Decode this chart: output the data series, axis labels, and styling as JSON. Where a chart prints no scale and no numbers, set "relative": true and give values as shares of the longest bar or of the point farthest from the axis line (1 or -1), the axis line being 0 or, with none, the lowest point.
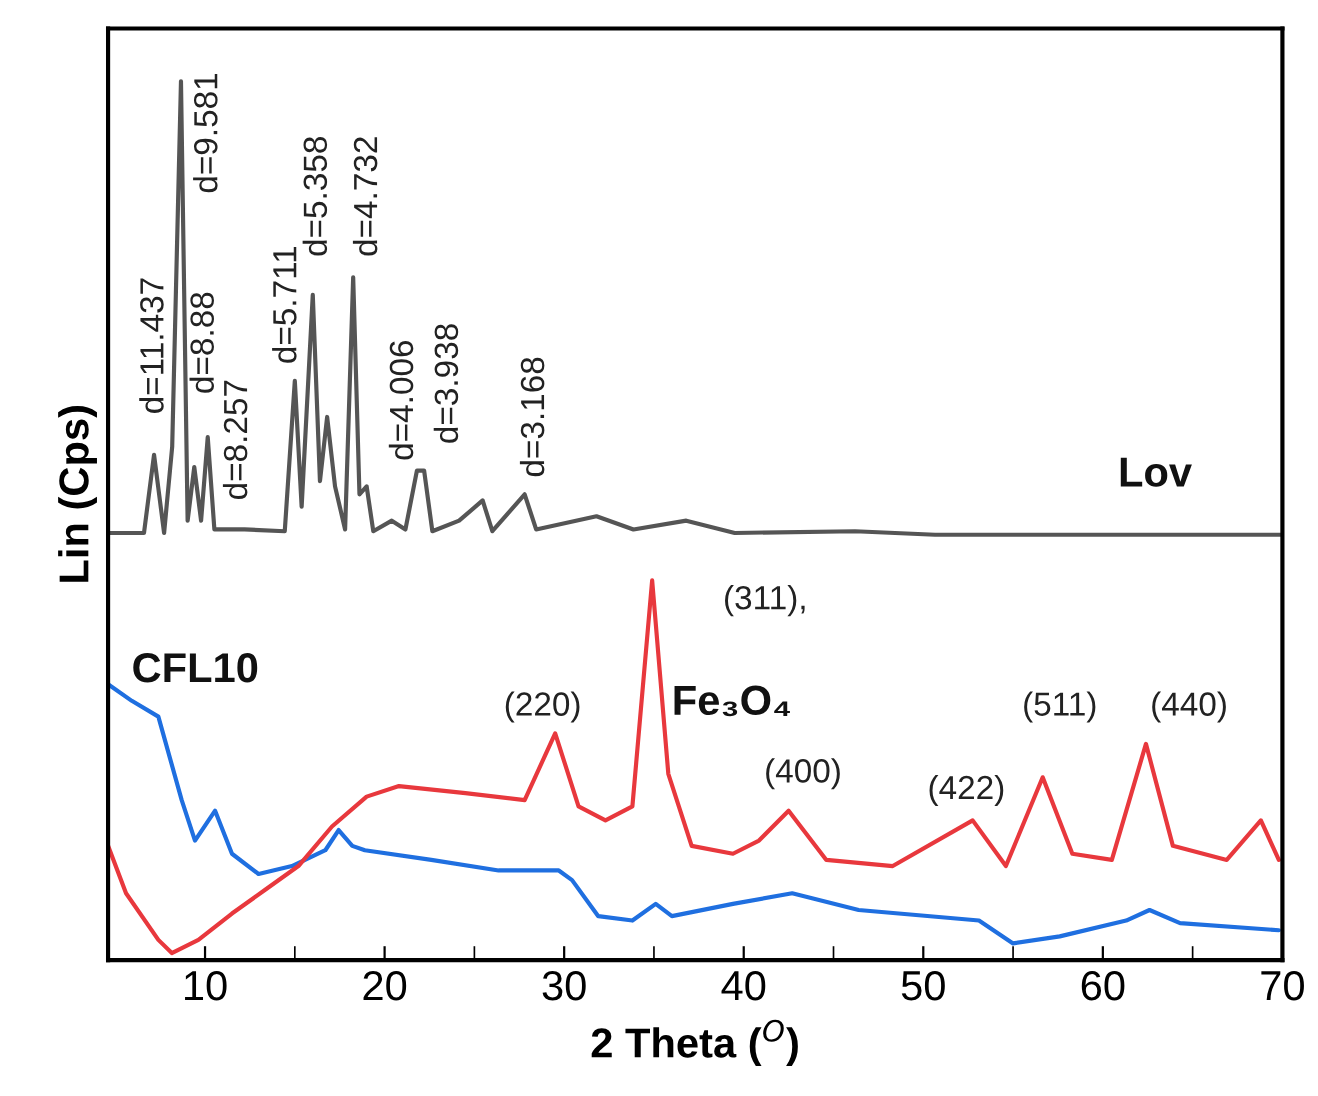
{
  "chart_data": {
    "type": "line",
    "relative": true,
    "xlabel": "2 Theta ($^{O}$)",
    "ylabel": "Lin (Cps)",
    "xlim": [
      4.6,
      70
    ],
    "xticks": [
      10,
      20,
      30,
      40,
      50,
      60,
      70
    ],
    "series": [
      {
        "name": "Lov",
        "color": "#555555",
        "x": [
          4.6,
          6.6,
          7.16,
          7.72,
          8.17,
          8.66,
          9.03,
          9.4,
          9.78,
          10.15,
          10.52,
          12.2,
          14.44,
          15.0,
          15.38,
          16.0,
          16.4,
          16.8,
          17.24,
          17.8,
          18.25,
          18.6,
          19.0,
          19.37,
          20.4,
          21.16,
          21.8,
          22.2,
          22.66,
          24.15,
          25.46,
          26.0,
          27.8,
          28.44,
          31.8,
          33.86,
          36.8,
          39.5,
          46.2,
          50.65,
          70
        ],
        "values": [
          0.486,
          0.486,
          0.575,
          0.486,
          0.584,
          1.0,
          0.5,
          0.561,
          0.5,
          0.595,
          0.49,
          0.49,
          0.488,
          0.659,
          0.516,
          0.757,
          0.545,
          0.618,
          0.539,
          0.49,
          0.777,
          0.53,
          0.539,
          0.488,
          0.5,
          0.49,
          0.557,
          0.557,
          0.488,
          0.5,
          0.523,
          0.488,
          0.53,
          0.49,
          0.505,
          0.49,
          0.5,
          0.486,
          0.488,
          0.484,
          0.484
        ]
      },
      {
        "name": "CFL10",
        "color": "#1f6fe0",
        "x": [
          4.6,
          5.92,
          7.4,
          7.77,
          8.7,
          9.44,
          10.56,
          11.5,
          12.98,
          14.84,
          16.7,
          17.44,
          18.2,
          18.9,
          22.6,
          26.35,
          29.7,
          30.44,
          31.9,
          33.8,
          35.1,
          36.0,
          39.4,
          42.7,
          46.4,
          53.1,
          55.0,
          57.6,
          61.3,
          62.6,
          64.3,
          69.8
        ],
        "values": [
          0.314,
          0.295,
          0.277,
          0.25,
          0.182,
          0.136,
          0.17,
          0.121,
          0.098,
          0.107,
          0.125,
          0.148,
          0.13,
          0.125,
          0.114,
          0.102,
          0.102,
          0.091,
          0.05,
          0.045,
          0.064,
          0.05,
          0.064,
          0.076,
          0.057,
          0.045,
          0.019,
          0.027,
          0.045,
          0.057,
          0.042,
          0.034
        ]
      },
      {
        "name": "Fe₃O₄",
        "color": "#e8383d",
        "x": [
          4.6,
          5.6,
          7.4,
          8.15,
          9.63,
          11.5,
          13.35,
          15.2,
          17.07,
          19.0,
          20.8,
          24.5,
          27.8,
          29.5,
          30.8,
          32.3,
          33.8,
          34.9,
          35.8,
          37.1,
          39.4,
          40.85,
          42.5,
          44.6,
          48.3,
          52.75,
          54.6,
          56.65,
          58.3,
          60.5,
          62.4,
          63.9,
          66.9,
          68.8,
          69.8
        ],
        "values": [
          0.13,
          0.076,
          0.023,
          0.008,
          0.023,
          0.053,
          0.08,
          0.107,
          0.152,
          0.186,
          0.198,
          0.19,
          0.182,
          0.258,
          0.175,
          0.159,
          0.175,
          0.432,
          0.212,
          0.13,
          0.121,
          0.136,
          0.17,
          0.114,
          0.107,
          0.159,
          0.107,
          0.208,
          0.121,
          0.114,
          0.246,
          0.13,
          0.114,
          0.159,
          0.114
        ]
      }
    ],
    "annotations": [
      "d=11.437",
      "d=9.581",
      "d=8.88",
      "d=8.257",
      "d=5.711",
      "d=5.358",
      "d=4.732",
      "d=4.006",
      "d=3.938",
      "d=3.168",
      "(220)",
      "(311),",
      "(400)",
      "(422)",
      "(511)",
      "(440)"
    ]
  }
}
